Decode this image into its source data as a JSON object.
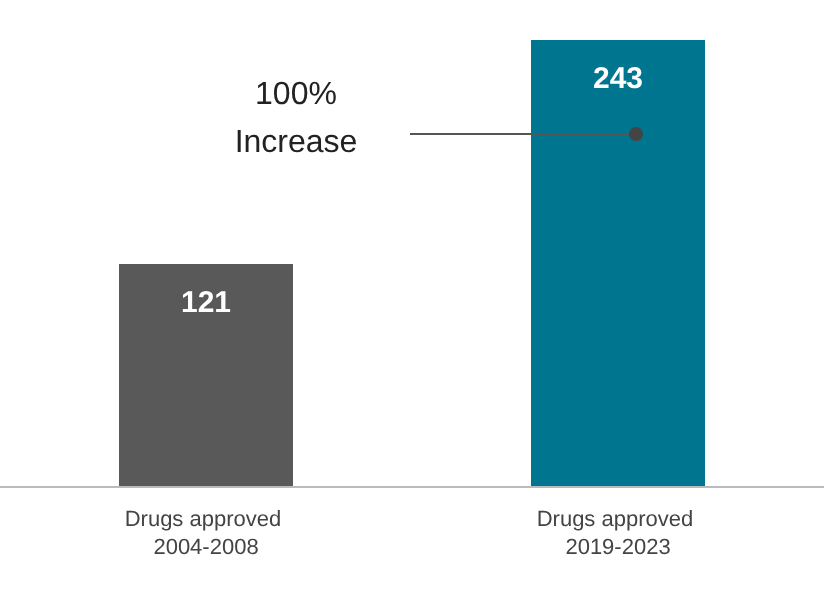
{
  "chart_data": {
    "type": "bar",
    "categories": [
      "Drugs approved 2004-2008",
      "Drugs approved 2019-2023"
    ],
    "values": [
      121,
      243
    ],
    "colors": [
      "#595959",
      "#00758f"
    ],
    "data_labels": true,
    "annotations": [
      "100%\nIncrease"
    ]
  }
}
